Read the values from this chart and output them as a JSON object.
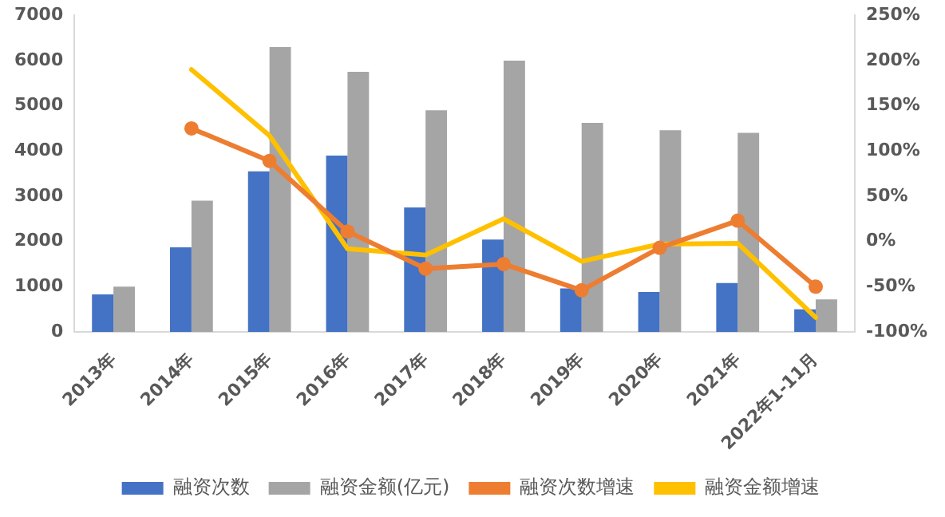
{
  "chart_data": {
    "type": "bar",
    "categories": [
      "2013年",
      "2014年",
      "2015年",
      "2016年",
      "2017年",
      "2018年",
      "2019年",
      "2020年",
      "2021年",
      "2022年1-11月"
    ],
    "series": [
      {
        "name": "融资次数",
        "color": "#4472c4",
        "values": [
          830,
          1870,
          3550,
          3900,
          2750,
          2040,
          960,
          880,
          1080,
          500
        ]
      },
      {
        "name": "融资金额(亿元)",
        "color": "#a5a5a5",
        "values": [
          1000,
          2900,
          6300,
          5750,
          4900,
          6000,
          4620,
          4460,
          4400,
          720
        ]
      },
      {
        "name": "融资次数增速",
        "type": "line",
        "axis": "y2",
        "color": "#ed7d31",
        "marker": "circle",
        "values": [
          null,
          125,
          89,
          11,
          -30,
          -25,
          -54,
          -7,
          23,
          -50
        ]
      },
      {
        "name": "融资金额增速",
        "type": "line",
        "axis": "y2",
        "color": "#ffc000",
        "marker": "none",
        "values": [
          null,
          190,
          117,
          -8,
          -15,
          25,
          -22,
          -3,
          -2,
          -84
        ]
      }
    ],
    "ylim": [
      0,
      7000
    ],
    "yticks": [
      0,
      1000,
      2000,
      3000,
      4000,
      5000,
      6000,
      7000
    ],
    "y2lim": [
      -100,
      250
    ],
    "y2ticks": [
      {
        "value": -100,
        "label": "-100%"
      },
      {
        "value": -50,
        "label": "-50%"
      },
      {
        "value": 0,
        "label": "0%"
      },
      {
        "value": 50,
        "label": "50%"
      },
      {
        "value": 100,
        "label": "100%"
      },
      {
        "value": 150,
        "label": "150%"
      },
      {
        "value": 200,
        "label": "200%"
      },
      {
        "value": 250,
        "label": "250%"
      }
    ],
    "grid": false,
    "legend": "bottom"
  }
}
